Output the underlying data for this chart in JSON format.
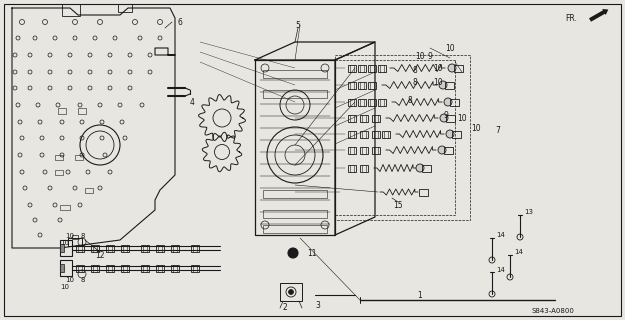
{
  "bg_color": "#e8e6e0",
  "line_color": "#1a1a1a",
  "title_code": "S843-A0800",
  "fig_width": 6.25,
  "fig_height": 3.2,
  "dpi": 100
}
